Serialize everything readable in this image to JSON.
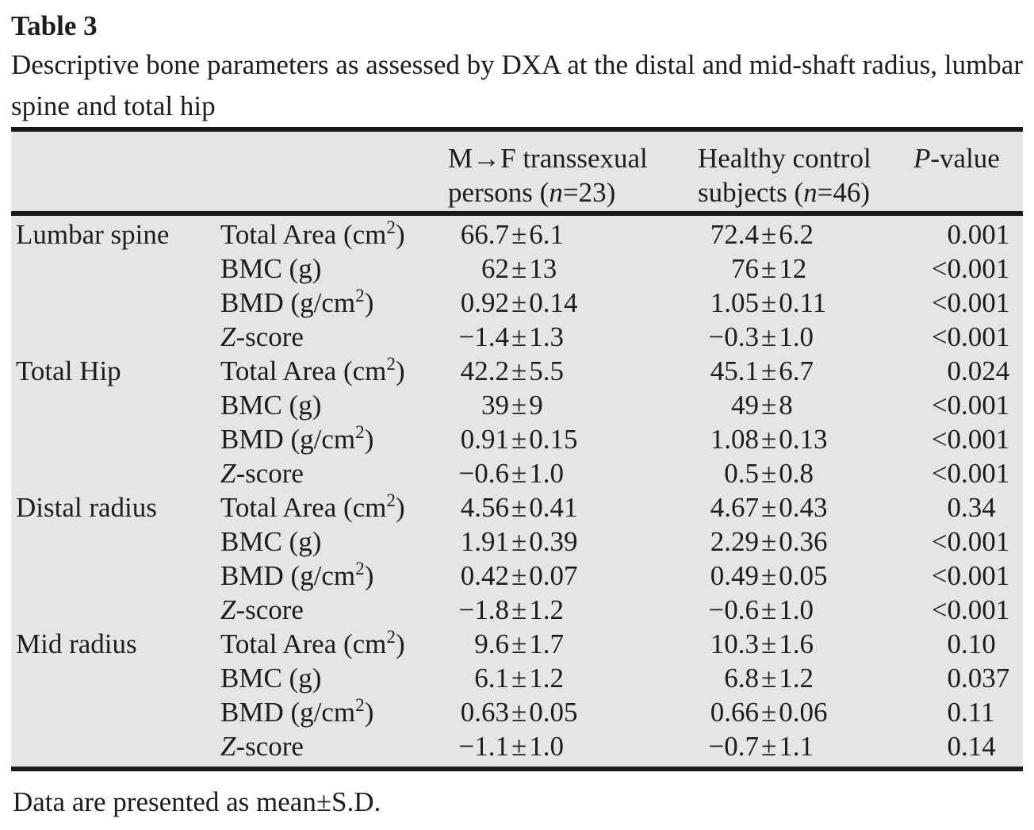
{
  "colors": {
    "page_bg": "#ffffff",
    "table_bg": "#e5e6e4",
    "rule": "#1a1a1a",
    "text": "#1d1d1d"
  },
  "heading": {
    "label": "Table 3",
    "caption": "Descriptive bone parameters as assessed by DXA at the distal and mid-shaft radius, lumbar spine and total hip"
  },
  "header": {
    "mtf_lines": [
      "M→F transsexual",
      "persons (*n*=23)"
    ],
    "control_lines": [
      "Healthy control",
      "subjects (*n*=46)"
    ],
    "pvalue": "*P*-value"
  },
  "sections": [
    {
      "region": "Lumbar spine",
      "rows": [
        {
          "param": "Total Area (cm^2^)",
          "mtf": "66.7±6.1",
          "control": "72.4±6.2",
          "p": "0.001"
        },
        {
          "param": "BMC (g)",
          "mtf": "62±13",
          "control": "76±12",
          "p": "<0.001"
        },
        {
          "param": "BMD (g/cm^2^)",
          "mtf": "0.92±0.14",
          "control": "1.05±0.11",
          "p": "<0.001"
        },
        {
          "param": "*Z*-score",
          "mtf": "−1.4±1.3",
          "control": "−0.3±1.0",
          "p": "<0.001"
        }
      ]
    },
    {
      "region": "Total Hip",
      "rows": [
        {
          "param": "Total Area (cm^2^)",
          "mtf": "42.2±5.5",
          "control": "45.1±6.7",
          "p": "0.024"
        },
        {
          "param": "BMC (g)",
          "mtf": "39±9",
          "control": "49±8",
          "p": "<0.001"
        },
        {
          "param": "BMD (g/cm^2^)",
          "mtf": "0.91±0.15",
          "control": "1.08±0.13",
          "p": "<0.001"
        },
        {
          "param": "*Z*-score",
          "mtf": "−0.6±1.0",
          "control": "0.5±0.8",
          "p": "<0.001"
        }
      ]
    },
    {
      "region": "Distal radius",
      "rows": [
        {
          "param": "Total Area (cm^2^)",
          "mtf": "4.56±0.41",
          "control": "4.67±0.43",
          "p": "0.34"
        },
        {
          "param": "BMC (g)",
          "mtf": "1.91±0.39",
          "control": "2.29±0.36",
          "p": "<0.001"
        },
        {
          "param": "BMD (g/cm^2^)",
          "mtf": "0.42±0.07",
          "control": "0.49±0.05",
          "p": "<0.001"
        },
        {
          "param": "*Z*-score",
          "mtf": "−1.8±1.2",
          "control": "−0.6±1.0",
          "p": "<0.001"
        }
      ]
    },
    {
      "region": "Mid radius",
      "rows": [
        {
          "param": "Total Area (cm^2^)",
          "mtf": "9.6±1.7",
          "control": "10.3±1.6",
          "p": "0.10"
        },
        {
          "param": "BMC (g)",
          "mtf": "6.1±1.2",
          "control": "6.8±1.2",
          "p": "0.037"
        },
        {
          "param": "BMD (g/cm^2^)",
          "mtf": "0.63±0.05",
          "control": "0.66±0.06",
          "p": "0.11"
        },
        {
          "param": "*Z*-score",
          "mtf": "−1.1±1.0",
          "control": "−0.7±1.1",
          "p": "0.14"
        }
      ]
    }
  ],
  "footnote": "Data are presented as mean±S.D."
}
